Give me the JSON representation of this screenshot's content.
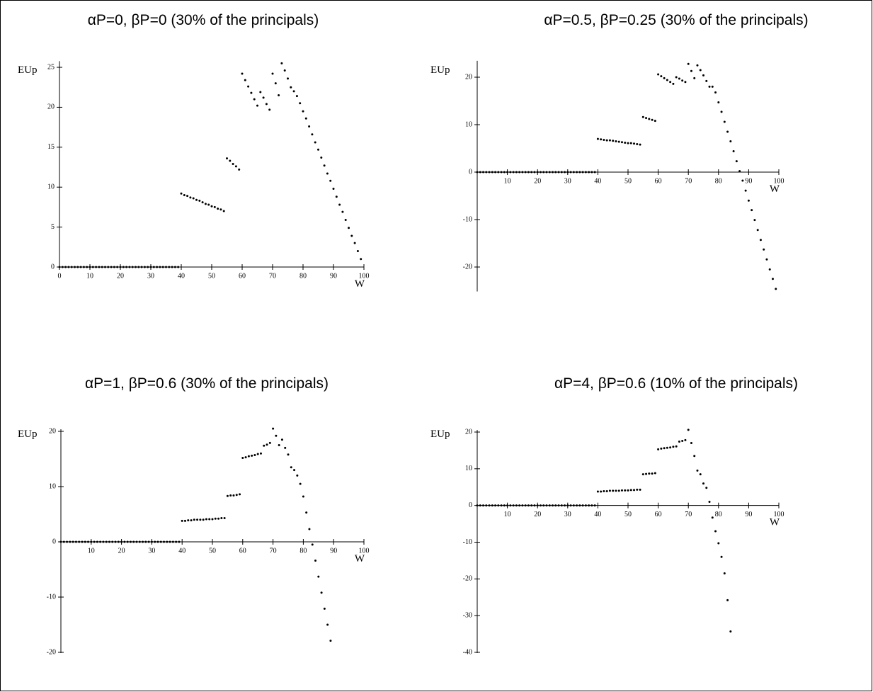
{
  "chart_data": [
    {
      "type": "scatter",
      "title": "αP=0, βP=0 (30% of the principals)",
      "x_label": "W",
      "y_label": "EUp",
      "color": "#000000",
      "xlim": [
        0,
        100
      ],
      "ylim": [
        0,
        25.5
      ],
      "xticks": [
        0,
        10,
        20,
        30,
        40,
        50,
        60,
        70,
        80,
        90,
        100
      ],
      "yticks": [
        0,
        5,
        10,
        15,
        20,
        25
      ],
      "x": [
        0,
        1,
        2,
        3,
        4,
        5,
        6,
        7,
        8,
        9,
        10,
        11,
        12,
        13,
        14,
        15,
        16,
        17,
        18,
        19,
        20,
        21,
        22,
        23,
        24,
        25,
        26,
        27,
        28,
        29,
        30,
        31,
        32,
        33,
        34,
        35,
        36,
        37,
        38,
        39,
        40,
        41,
        42,
        43,
        44,
        45,
        46,
        47,
        48,
        49,
        50,
        51,
        52,
        53,
        54,
        55,
        56,
        57,
        58,
        59,
        60,
        61,
        62,
        63,
        64,
        65,
        66,
        67,
        68,
        69,
        70,
        71,
        72,
        73,
        74,
        75,
        76,
        77,
        78,
        79,
        80,
        81,
        82,
        83,
        84,
        85,
        86,
        87,
        88,
        89,
        90,
        91,
        92,
        93,
        94,
        95,
        96,
        97,
        98,
        99
      ],
      "values": [
        0,
        0,
        0,
        0,
        0,
        0,
        0,
        0,
        0,
        0,
        0,
        0,
        0,
        0,
        0,
        0,
        0,
        0,
        0,
        0,
        0,
        0,
        0,
        0,
        0,
        0,
        0,
        0,
        0,
        0,
        0,
        0,
        0,
        0,
        0,
        0,
        0,
        0,
        0,
        0,
        9.2,
        9.0,
        8.9,
        8.7,
        8.6,
        8.4,
        8.3,
        8.1,
        7.9,
        7.8,
        7.6,
        7.5,
        7.3,
        7.2,
        7.0,
        13.6,
        13.3,
        12.9,
        12.6,
        12.2,
        24.2,
        23.4,
        22.6,
        21.8,
        21.0,
        20.2,
        21.9,
        21.2,
        20.4,
        19.7,
        24.2,
        23.0,
        21.5,
        25.5,
        24.6,
        23.6,
        22.5,
        22.0,
        21.4,
        20.5,
        19.5,
        18.6,
        17.6,
        16.6,
        15.6,
        14.7,
        13.7,
        12.7,
        11.7,
        10.8,
        9.8,
        8.8,
        7.8,
        6.9,
        5.9,
        4.9,
        3.9,
        3.0,
        2.0,
        1.0
      ]
    },
    {
      "type": "scatter",
      "title": "αP=0.5, βP=0.25 (30% of the principals)",
      "x_label": "W",
      "y_label": "EUp",
      "color": "#000000",
      "xlim": [
        0,
        100
      ],
      "ylim": [
        -25,
        23
      ],
      "xticks": [
        10,
        20,
        30,
        40,
        50,
        60,
        70,
        80,
        90,
        100
      ],
      "yticks": [
        -20,
        -10,
        0,
        10,
        20
      ],
      "x": [
        0,
        1,
        2,
        3,
        4,
        5,
        6,
        7,
        8,
        9,
        10,
        11,
        12,
        13,
        14,
        15,
        16,
        17,
        18,
        19,
        20,
        21,
        22,
        23,
        24,
        25,
        26,
        27,
        28,
        29,
        30,
        31,
        32,
        33,
        34,
        35,
        36,
        37,
        38,
        39,
        40,
        41,
        42,
        43,
        44,
        45,
        46,
        47,
        48,
        49,
        50,
        51,
        52,
        53,
        54,
        55,
        56,
        57,
        58,
        59,
        60,
        61,
        62,
        63,
        64,
        65,
        66,
        67,
        68,
        69,
        70,
        71,
        72,
        73,
        74,
        75,
        76,
        77,
        78,
        79,
        80,
        81,
        82,
        83,
        84,
        85,
        86,
        87,
        88,
        89,
        90,
        91,
        92,
        93,
        94,
        95,
        96,
        97,
        98,
        99
      ],
      "values": [
        0,
        0,
        0,
        0,
        0,
        0,
        0,
        0,
        0,
        0,
        0,
        0,
        0,
        0,
        0,
        0,
        0,
        0,
        0,
        0,
        0,
        0,
        0,
        0,
        0,
        0,
        0,
        0,
        0,
        0,
        0,
        0,
        0,
        0,
        0,
        0,
        0,
        0,
        0,
        0,
        7.0,
        6.9,
        6.8,
        6.7,
        6.7,
        6.6,
        6.5,
        6.4,
        6.3,
        6.2,
        6.1,
        6.1,
        6.0,
        5.9,
        5.8,
        11.6,
        11.4,
        11.2,
        11.0,
        10.8,
        20.6,
        20.2,
        19.8,
        19.4,
        19.0,
        18.6,
        20.0,
        19.7,
        19.3,
        19.0,
        22.8,
        21.3,
        19.8,
        22.5,
        21.5,
        20.4,
        19.2,
        18.0,
        18.0,
        16.8,
        14.7,
        12.7,
        10.6,
        8.5,
        6.5,
        4.4,
        2.3,
        0.2,
        -1.8,
        -3.9,
        -6.0,
        -8.0,
        -10.1,
        -12.2,
        -14.3,
        -16.3,
        -18.4,
        -20.5,
        -22.5,
        -24.6
      ]
    },
    {
      "type": "scatter",
      "title": "αP=1, βP=0.6 (30% of the principals)",
      "x_label": "W",
      "y_label": "EUp",
      "color": "#000000",
      "xlim": [
        0,
        100
      ],
      "ylim": [
        -20,
        20
      ],
      "xticks": [
        10,
        20,
        30,
        40,
        50,
        60,
        70,
        80,
        90,
        100
      ],
      "yticks": [
        -20,
        -10,
        0,
        10,
        20
      ],
      "x": [
        0,
        1,
        2,
        3,
        4,
        5,
        6,
        7,
        8,
        9,
        10,
        11,
        12,
        13,
        14,
        15,
        16,
        17,
        18,
        19,
        20,
        21,
        22,
        23,
        24,
        25,
        26,
        27,
        28,
        29,
        30,
        31,
        32,
        33,
        34,
        35,
        36,
        37,
        38,
        39,
        40,
        41,
        42,
        43,
        44,
        45,
        46,
        47,
        48,
        49,
        50,
        51,
        52,
        53,
        54,
        55,
        56,
        57,
        58,
        59,
        60,
        61,
        62,
        63,
        64,
        65,
        66,
        67,
        68,
        69,
        70,
        71,
        72,
        73,
        74,
        75,
        76,
        77,
        78,
        79,
        80,
        81,
        82,
        83,
        84,
        85,
        86,
        87,
        88,
        89
      ],
      "values": [
        0,
        0,
        0,
        0,
        0,
        0,
        0,
        0,
        0,
        0,
        0,
        0,
        0,
        0,
        0,
        0,
        0,
        0,
        0,
        0,
        0,
        0,
        0,
        0,
        0,
        0,
        0,
        0,
        0,
        0,
        0,
        0,
        0,
        0,
        0,
        0,
        0,
        0,
        0,
        0,
        3.8,
        3.8,
        3.9,
        3.9,
        4.0,
        4.0,
        4.0,
        4.0,
        4.1,
        4.1,
        4.1,
        4.2,
        4.2,
        4.3,
        4.3,
        8.3,
        8.4,
        8.4,
        8.5,
        8.6,
        15.2,
        15.3,
        15.5,
        15.6,
        15.7,
        15.9,
        16.0,
        17.4,
        17.6,
        17.9,
        20.5,
        19.2,
        17.5,
        18.5,
        17.0,
        15.8,
        13.5,
        13.0,
        12.0,
        10.5,
        8.2,
        5.3,
        2.3,
        -0.5,
        -3.4,
        -6.3,
        -9.2,
        -12.1,
        -15.0,
        -17.9
      ]
    },
    {
      "type": "scatter",
      "title": "αP=4, βP=0.6 (10% of the principals)",
      "x_label": "W",
      "y_label": "EUp",
      "color": "#000000",
      "xlim": [
        0,
        100
      ],
      "ylim": [
        -40,
        20
      ],
      "xticks": [
        10,
        20,
        30,
        40,
        50,
        60,
        70,
        80,
        90,
        100
      ],
      "yticks": [
        -40,
        -30,
        -20,
        -10,
        0,
        10,
        20
      ],
      "x": [
        0,
        1,
        2,
        3,
        4,
        5,
        6,
        7,
        8,
        9,
        10,
        11,
        12,
        13,
        14,
        15,
        16,
        17,
        18,
        19,
        20,
        21,
        22,
        23,
        24,
        25,
        26,
        27,
        28,
        29,
        30,
        31,
        32,
        33,
        34,
        35,
        36,
        37,
        38,
        39,
        40,
        41,
        42,
        43,
        44,
        45,
        46,
        47,
        48,
        49,
        50,
        51,
        52,
        53,
        54,
        55,
        56,
        57,
        58,
        59,
        60,
        61,
        62,
        63,
        64,
        65,
        66,
        67,
        68,
        69,
        70,
        71,
        72,
        73,
        74,
        75,
        76,
        77,
        78,
        79,
        80,
        81,
        82,
        83,
        84
      ],
      "values": [
        0,
        0,
        0,
        0,
        0,
        0,
        0,
        0,
        0,
        0,
        0,
        0,
        0,
        0,
        0,
        0,
        0,
        0,
        0,
        0,
        0,
        0,
        0,
        0,
        0,
        0,
        0,
        0,
        0,
        0,
        0,
        0,
        0,
        0,
        0,
        0,
        0,
        0,
        0,
        0,
        3.8,
        3.8,
        3.9,
        3.9,
        4.0,
        4.0,
        4.0,
        4.0,
        4.1,
        4.1,
        4.1,
        4.2,
        4.2,
        4.3,
        4.3,
        8.5,
        8.6,
        8.7,
        8.7,
        8.8,
        15.3,
        15.5,
        15.6,
        15.7,
        15.8,
        16.0,
        16.1,
        17.4,
        17.6,
        17.8,
        20.6,
        17.0,
        13.5,
        9.5,
        8.5,
        6.0,
        4.8,
        1.0,
        -3.3,
        -7.0,
        -10.3,
        -14.0,
        -18.5,
        -25.8,
        -34.3
      ]
    }
  ]
}
